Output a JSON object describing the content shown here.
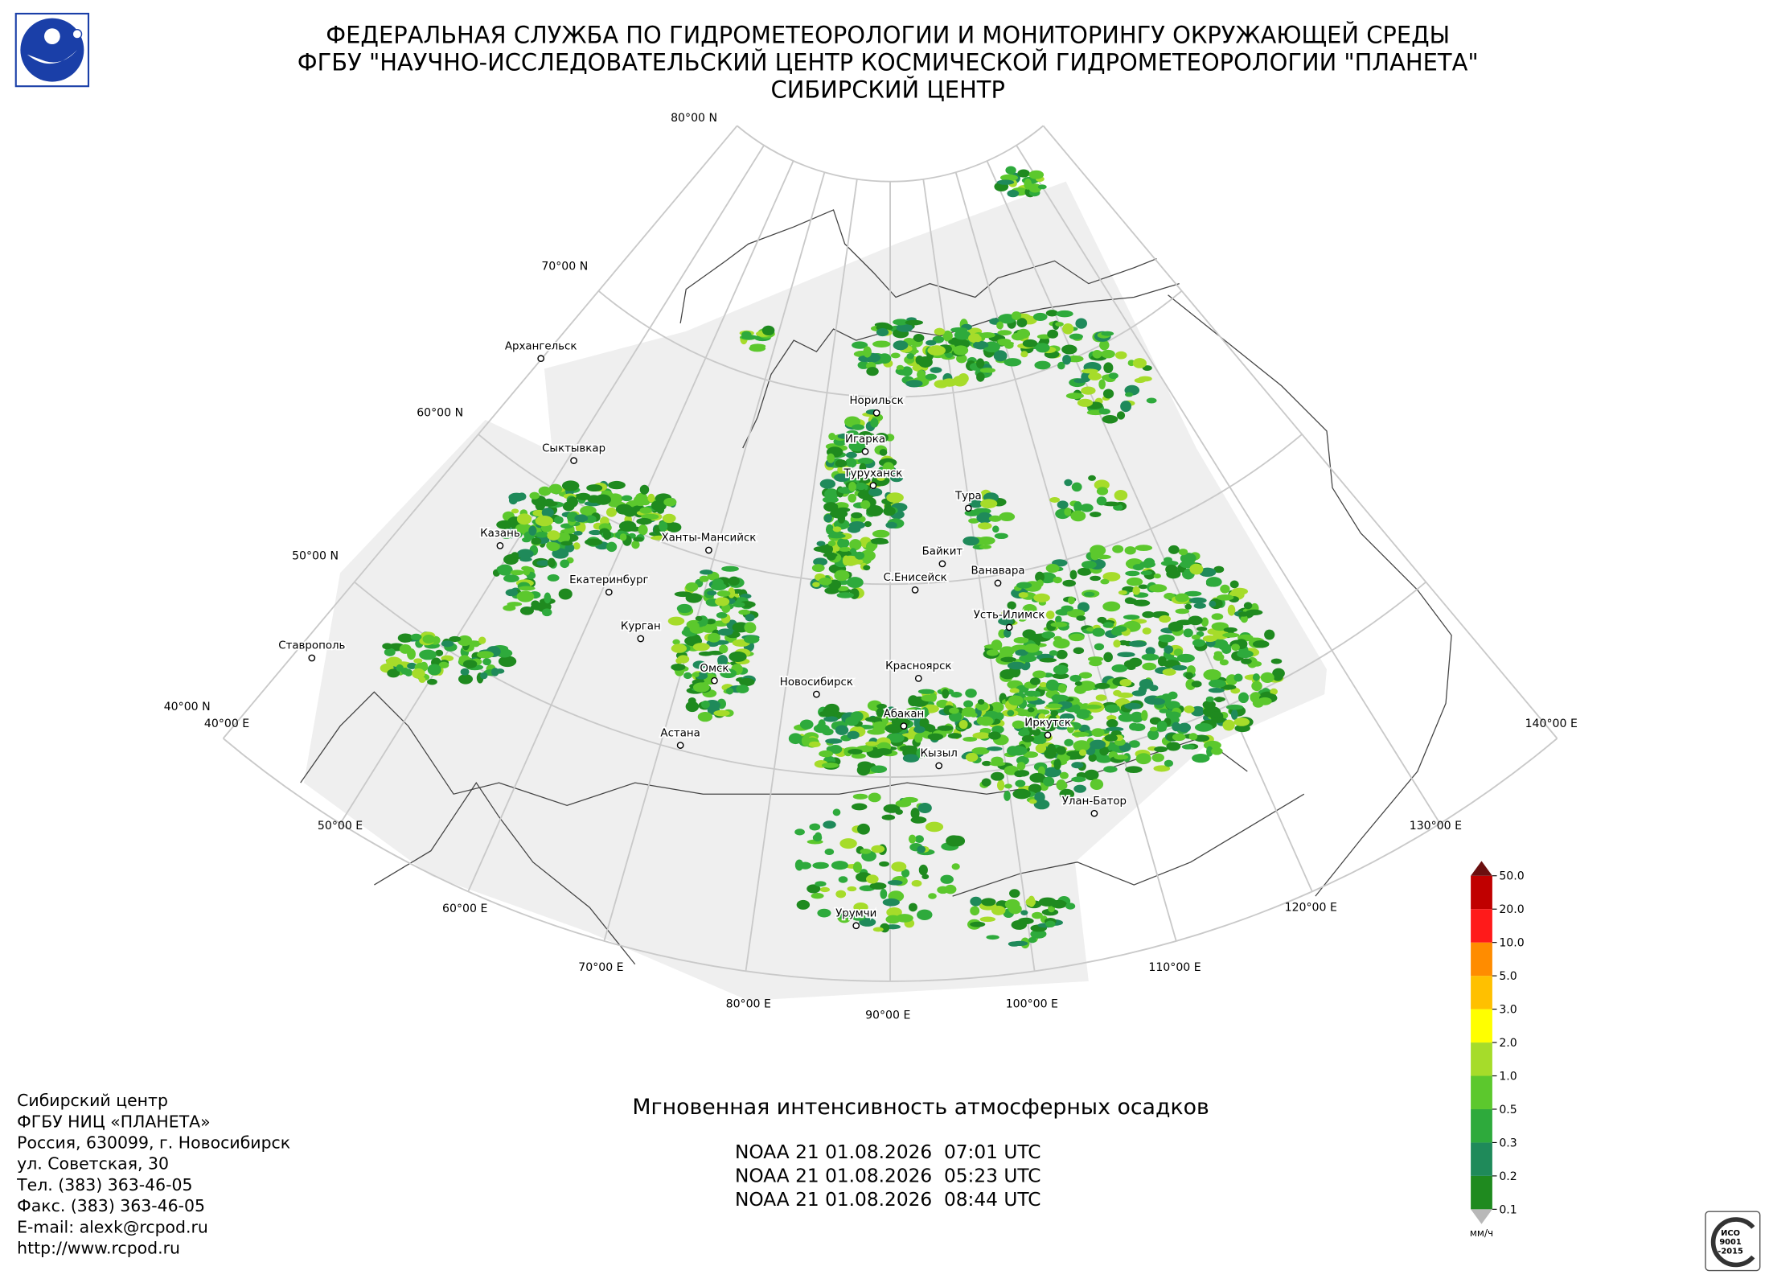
{
  "header": {
    "lines": [
      "ФЕДЕРАЛЬНАЯ СЛУЖБА ПО ГИДРОМЕТЕОРОЛОГИИ И МОНИТОРИНГУ ОКРУЖАЮЩЕЙ СРЕДЫ",
      "ФГБУ \"НАУЧНО-ИССЛЕДОВАТЕЛЬСКИЙ ЦЕНТР КОСМИЧЕСКОЙ ГИДРОМЕТЕОРОЛОГИИ \"ПЛАНЕТА\"",
      "СИБИРСКИЙ ЦЕНТР"
    ]
  },
  "map": {
    "lat_labels": [
      "80°00 N",
      "70°00 N",
      "60°00 N",
      "50°00 N",
      "40°00 N"
    ],
    "lon_labels": [
      "40°00 E",
      "50°00 E",
      "60°00 E",
      "70°00 E",
      "80°00 E",
      "90°00 E",
      "100°00 E",
      "110°00 E",
      "120°00 E",
      "130°00 E",
      "140°00 E"
    ],
    "cities": [
      "Архангельск",
      "Сыктывкар",
      "Казань",
      "Екатеринбург",
      "Ханты-Мансийск",
      "Курган",
      "Ставрополь",
      "Омск",
      "Астана",
      "Новосибирск",
      "Норильск",
      "Игарка",
      "Туруханск",
      "Тура",
      "Байкит",
      "С.Енисейск",
      "Ванавара",
      "Усть-Илимск",
      "Красноярск",
      "Абакан",
      "Кызыл",
      "Иркутск",
      "Улан-Батор",
      "Урумчи"
    ]
  },
  "legend": {
    "ticks": [
      "0.1",
      "0.2",
      "0.3",
      "0.5",
      "1.0",
      "2.0",
      "3.0",
      "5.0",
      "10.0",
      "20.0",
      "50.0"
    ],
    "colors": [
      "#1f8a1f",
      "#1f8a5a",
      "#2eaa3c",
      "#5cc82d",
      "#a6dc2a",
      "#ffff00",
      "#ffc000",
      "#ff8c00",
      "#ff1a1a",
      "#c00000"
    ],
    "under_color": "#b8b8b8",
    "over_color": "#6b0f0f",
    "unit": "мм/ч"
  },
  "product": {
    "title": "Мгновенная интенсивность атмосферных осадков",
    "passes": [
      "NOAA 21 01.08.2026  07:01 UTC",
      "NOAA 21 01.08.2026  05:23 UTC",
      "NOAA 21 01.08.2026  08:44 UTC"
    ]
  },
  "contact": {
    "lines": [
      "Сибирский центр",
      "ФГБУ НИЦ «ПЛАНЕТА»",
      "Россия, 630099, г. Новосибирск",
      "ул. Советская, 30",
      "Тел. (383) 363-46-05",
      "Факс. (383) 363-46-05",
      "E-mail: alexk@rcpod.ru",
      "http://www.rcpod.ru"
    ]
  },
  "certificate": {
    "lines": [
      "ИСО",
      "9001",
      "-2015"
    ]
  }
}
